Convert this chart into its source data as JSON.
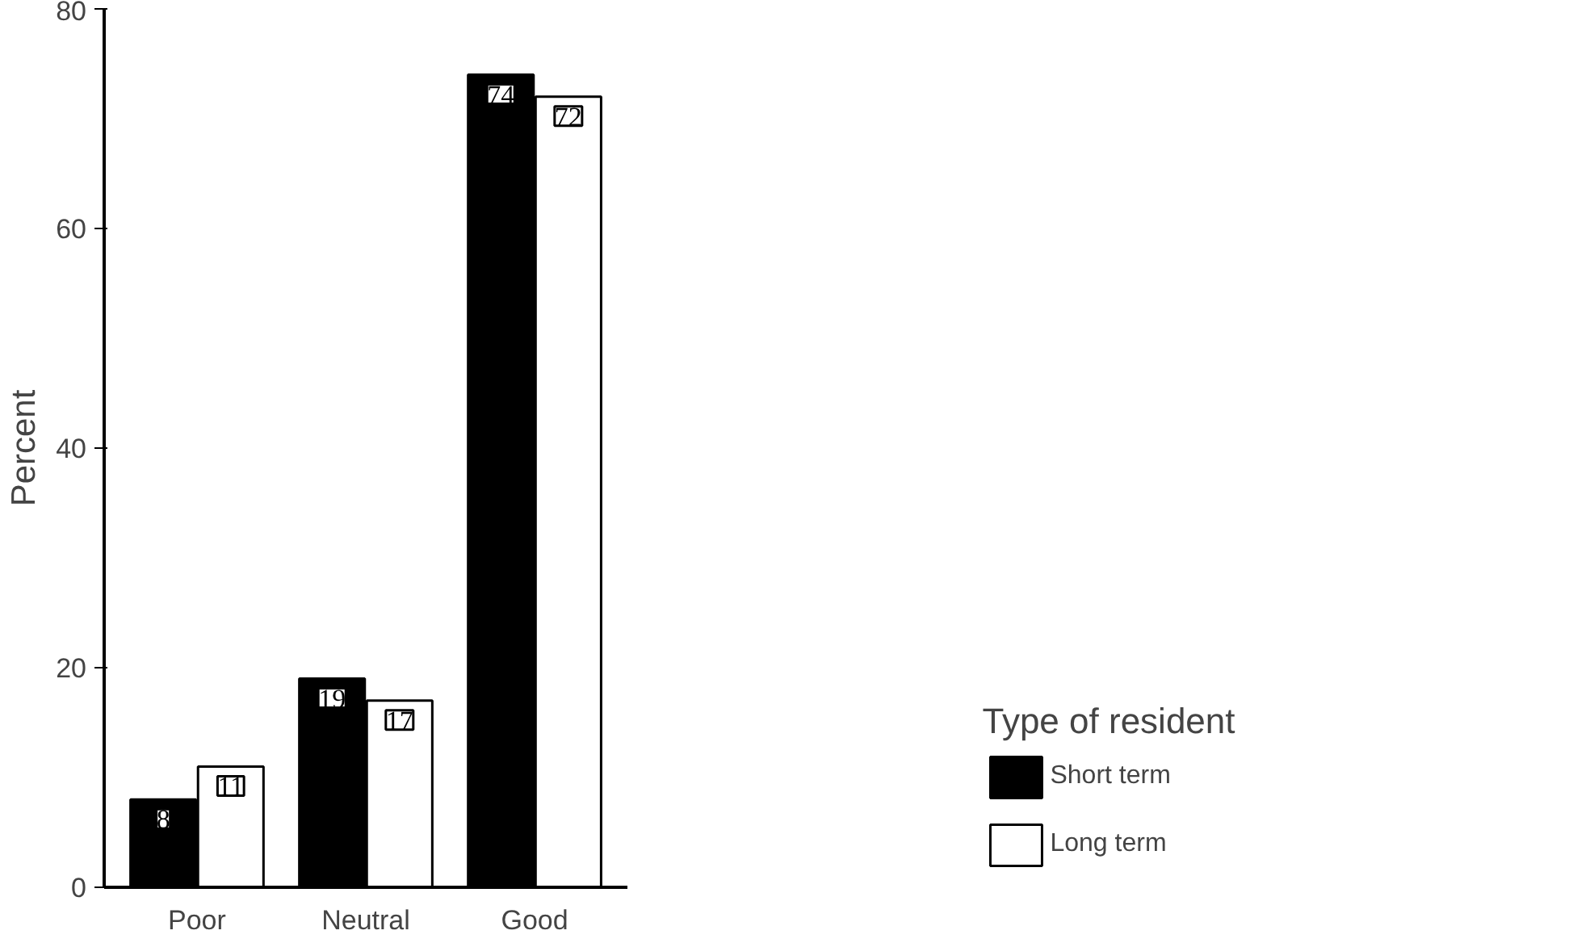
{
  "chart_data": {
    "type": "bar",
    "ylabel": "Percent",
    "categories": [
      "Poor",
      "Neutral",
      "Good"
    ],
    "series": [
      {
        "name": "Short term",
        "color": "#000000",
        "values": [
          8,
          19,
          74
        ]
      },
      {
        "name": "Long term",
        "color": "#ffffff",
        "values": [
          11,
          17,
          72
        ]
      }
    ],
    "ylim": [
      0,
      80
    ],
    "yticks": [
      0,
      20,
      40,
      60,
      80
    ],
    "grid": false,
    "legend": "right",
    "legend_title": "Type of resident",
    "data_labels": true
  }
}
